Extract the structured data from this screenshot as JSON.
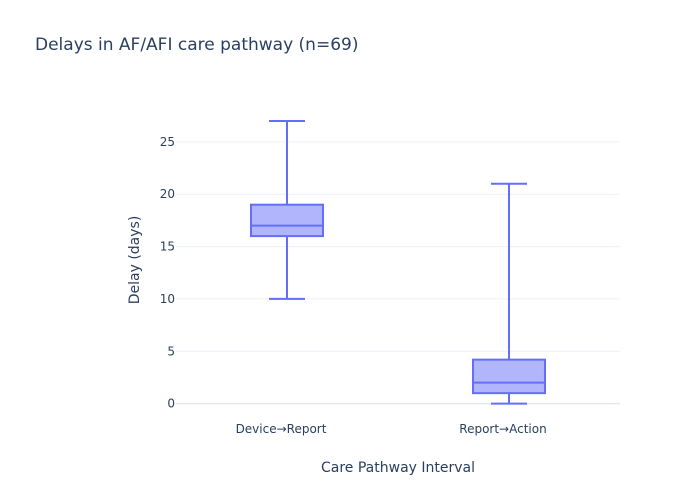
{
  "chart_data": {
    "type": "box",
    "title": "Delays in AF/AFI care pathway (n=69)",
    "xlabel": "Care Pathway Interval",
    "ylabel": "Delay (days)",
    "ylim": [
      -0.8,
      29
    ],
    "yticks": [
      0,
      5,
      10,
      15,
      20,
      25
    ],
    "grid": true,
    "categories": [
      "Device→Report",
      "Report→Action"
    ],
    "boxes": [
      {
        "category": "Device→Report",
        "min": 10,
        "q1": 16,
        "median": 17,
        "q3": 19,
        "max": 27
      },
      {
        "category": "Report→Action",
        "min": 0,
        "q1": 1,
        "median": 2,
        "q3": 4.2,
        "max": 21
      }
    ],
    "colors": {
      "box_line": "#636efa",
      "box_fill": "#636efa",
      "text": "#2a3f5f",
      "grid": "#ebf0f8",
      "zero_line": "#e5e8ee"
    }
  }
}
